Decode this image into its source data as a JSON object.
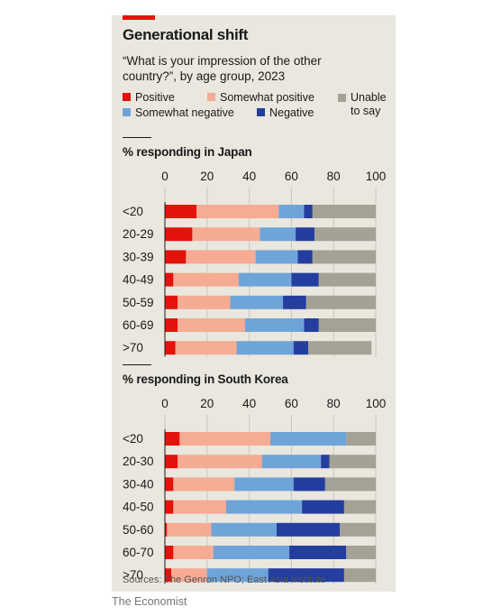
{
  "header": {
    "title": "Generational shift",
    "subtitle": "“What is your impression of the other country?”, by age group, 2023"
  },
  "legend": [
    {
      "label": "Positive",
      "color": "#e3120b"
    },
    {
      "label": "Somewhat positive",
      "color": "#f6ab93"
    },
    {
      "label": "Unable to say",
      "color": "#a3a295"
    },
    {
      "label": "Somewhat negative",
      "color": "#6fa4d8"
    },
    {
      "label": "Negative",
      "color": "#233e9e"
    }
  ],
  "chart_data": [
    {
      "type": "bar",
      "stacked": true,
      "orientation": "horizontal",
      "title": "% responding in Japan",
      "ticks": [
        0,
        20,
        40,
        60,
        80,
        100
      ],
      "xlim": [
        0,
        100
      ],
      "categories": [
        "<20",
        "20-29",
        "30-39",
        "40-49",
        "50-59",
        "60-69",
        ">70"
      ],
      "series": [
        {
          "name": "Positive",
          "color": "#e3120b",
          "values": [
            15,
            13,
            10,
            4,
            6,
            6,
            5
          ]
        },
        {
          "name": "Somewhat positive",
          "color": "#f6ab93",
          "values": [
            39,
            32,
            33,
            31,
            25,
            32,
            29
          ]
        },
        {
          "name": "Somewhat negative",
          "color": "#6fa4d8",
          "values": [
            12,
            17,
            20,
            25,
            25,
            28,
            27
          ]
        },
        {
          "name": "Negative",
          "color": "#233e9e",
          "values": [
            4,
            9,
            7,
            13,
            11,
            7,
            7
          ]
        },
        {
          "name": "Unable to say",
          "color": "#a3a295",
          "values": [
            30,
            29,
            30,
            27,
            33,
            27,
            30
          ]
        }
      ]
    },
    {
      "type": "bar",
      "stacked": true,
      "orientation": "horizontal",
      "title": "% responding in South Korea",
      "ticks": [
        0,
        20,
        40,
        60,
        80,
        100
      ],
      "xlim": [
        0,
        100
      ],
      "categories": [
        "<20",
        "20-30",
        "30-40",
        "40-50",
        "50-60",
        "60-70",
        ">70"
      ],
      "series": [
        {
          "name": "Positive",
          "color": "#e3120b",
          "values": [
            7,
            6,
            4,
            4,
            1,
            4,
            3
          ]
        },
        {
          "name": "Somewhat positive",
          "color": "#f6ab93",
          "values": [
            43,
            40,
            29,
            25,
            21,
            19,
            17
          ]
        },
        {
          "name": "Somewhat negative",
          "color": "#6fa4d8",
          "values": [
            36,
            28,
            28,
            36,
            31,
            36,
            29
          ]
        },
        {
          "name": "Negative",
          "color": "#233e9e",
          "values": [
            0,
            4,
            15,
            20,
            30,
            27,
            36
          ]
        },
        {
          "name": "Unable to say",
          "color": "#a3a295",
          "values": [
            14,
            22,
            24,
            15,
            17,
            14,
            15
          ]
        }
      ]
    }
  ],
  "source": "Sources: The Genron NPO; East Asia Institute",
  "brand": "The Economist"
}
